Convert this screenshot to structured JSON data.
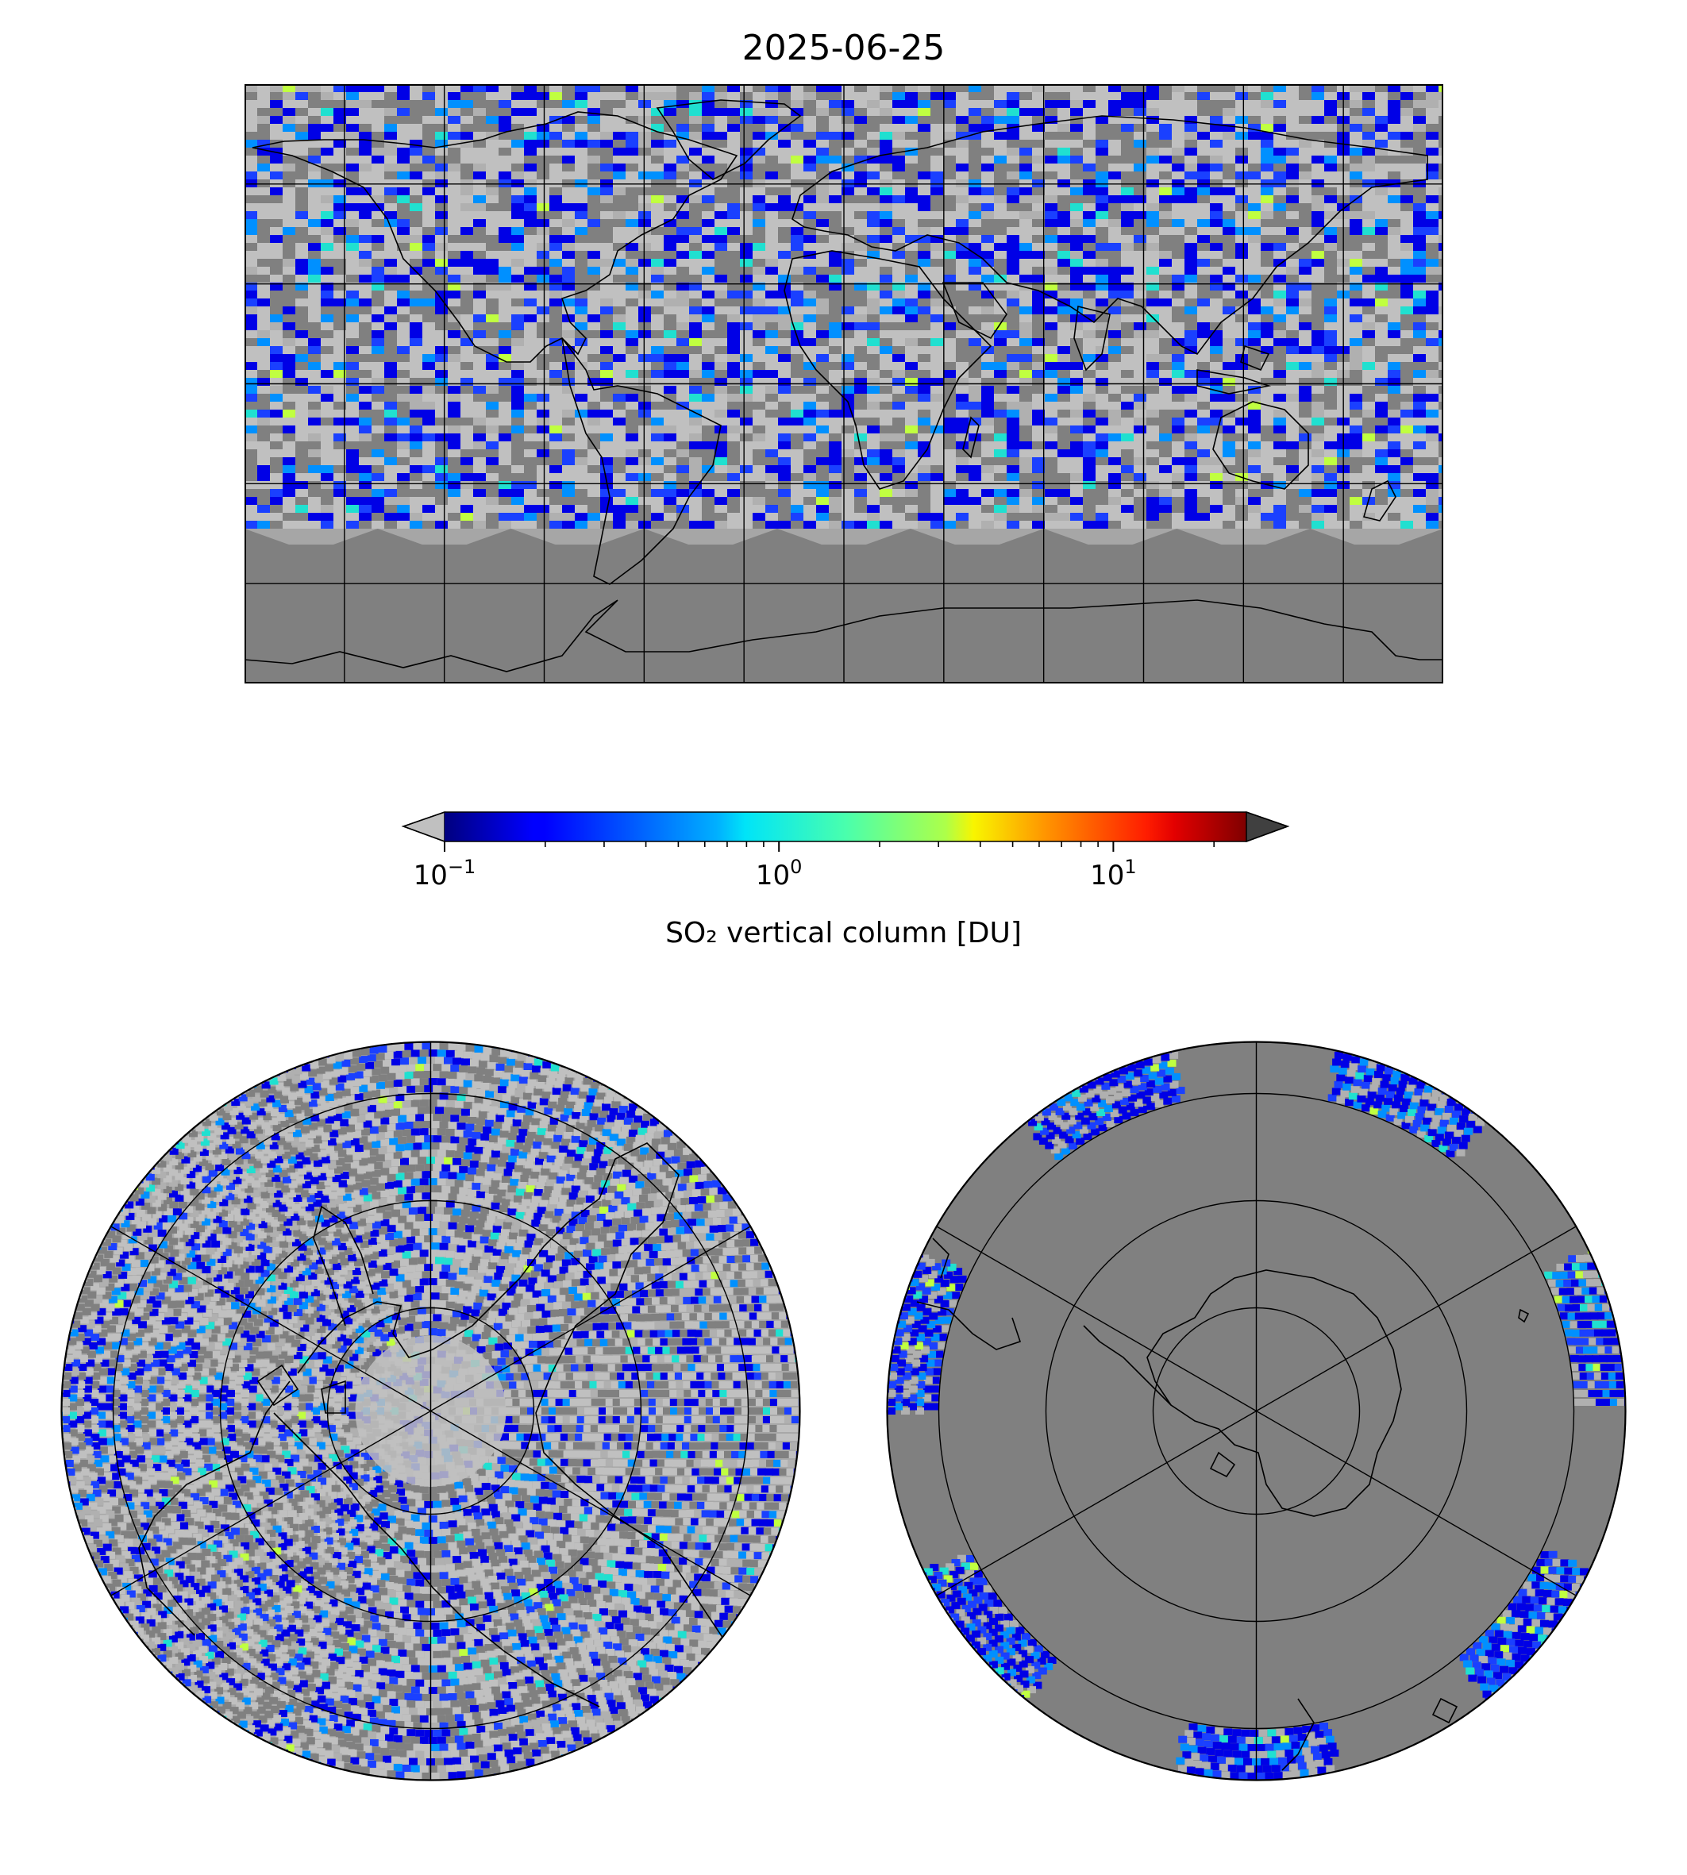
{
  "figure": {
    "title": "2025-06-25"
  },
  "colorbar": {
    "label": "SO₂ vertical column [DU]",
    "scale": "log",
    "range": [
      0.1,
      25
    ],
    "colormap": "jet",
    "under_color": "#c0c0c0",
    "over_color": "#404040",
    "ticks": [
      {
        "base": "10",
        "exp": "−1",
        "value": 0.1
      },
      {
        "base": "10",
        "exp": "0",
        "value": 1
      },
      {
        "base": "10",
        "exp": "1",
        "value": 10
      }
    ]
  },
  "maps": {
    "world": {
      "projection": "plate carree",
      "gridlines": "every 30°",
      "no_data_color": "#808080"
    },
    "north_pole": {
      "projection": "north polar stereographic",
      "gridlines": true
    },
    "south_pole": {
      "projection": "south polar stereographic",
      "gridlines": true
    }
  }
}
